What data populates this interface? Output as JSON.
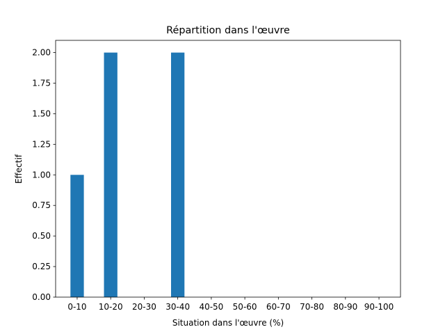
{
  "chart_data": {
    "type": "bar",
    "title": "Répartition dans l'œuvre",
    "x_label": "Situation dans l'œuvre (%)",
    "y_label": "Effectif",
    "categories": [
      "0-10",
      "10-20",
      "20-30",
      "30-40",
      "40-50",
      "50-60",
      "60-70",
      "70-80",
      "80-90",
      "90-100"
    ],
    "values": [
      1,
      2,
      0,
      2,
      0,
      0,
      0,
      0,
      0,
      0
    ],
    "color": "#1f77b4",
    "ylim": [
      0,
      2.1
    ],
    "yticks": [
      {
        "value": 0,
        "label": "0.00"
      },
      {
        "value": 0.25,
        "label": "0.25"
      },
      {
        "value": 0.5,
        "label": "0.50"
      },
      {
        "value": 0.75,
        "label": "0.75"
      },
      {
        "value": 1,
        "label": "1.00"
      },
      {
        "value": 1.25,
        "label": "1.25"
      },
      {
        "value": 1.5,
        "label": "1.50"
      },
      {
        "value": 1.75,
        "label": "1.75"
      },
      {
        "value": 2,
        "label": "2.00"
      }
    ],
    "grid": false
  }
}
